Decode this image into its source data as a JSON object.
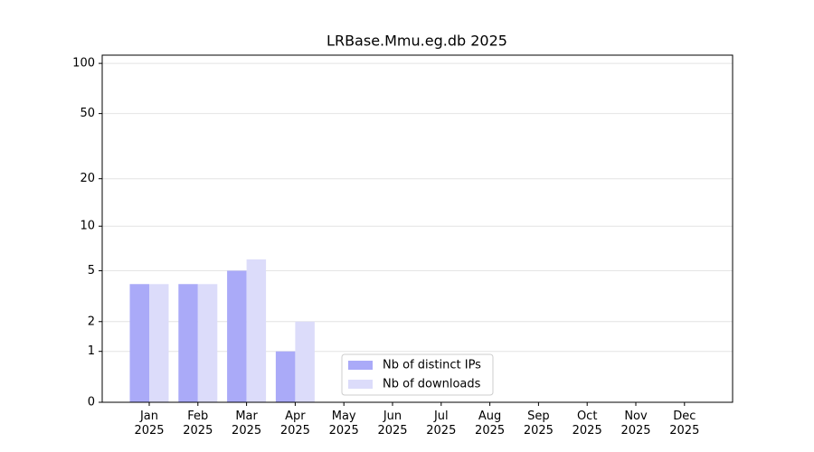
{
  "chart_data": {
    "type": "bar",
    "title": "LRBase.Mmu.eg.db 2025",
    "categories": [
      "Jan\n2025",
      "Feb\n2025",
      "Mar\n2025",
      "Apr\n2025",
      "May\n2025",
      "Jun\n2025",
      "Jul\n2025",
      "Aug\n2025",
      "Sep\n2025",
      "Oct\n2025",
      "Nov\n2025",
      "Dec\n2025"
    ],
    "series": [
      {
        "name": "Nb of distinct IPs",
        "color": "#aaaaf8",
        "values": [
          4,
          4,
          5,
          1,
          0,
          0,
          0,
          0,
          0,
          0,
          0,
          0
        ]
      },
      {
        "name": "Nb of downloads",
        "color": "#dcdcfa",
        "values": [
          4,
          4,
          6,
          2,
          0,
          0,
          0,
          0,
          0,
          0,
          0,
          0
        ]
      }
    ],
    "yscale": "log1p",
    "ylim": [
      0,
      112
    ],
    "yticks": [
      0,
      1,
      2,
      5,
      10,
      20,
      50,
      100
    ],
    "grid": true,
    "legend": "lower center"
  }
}
